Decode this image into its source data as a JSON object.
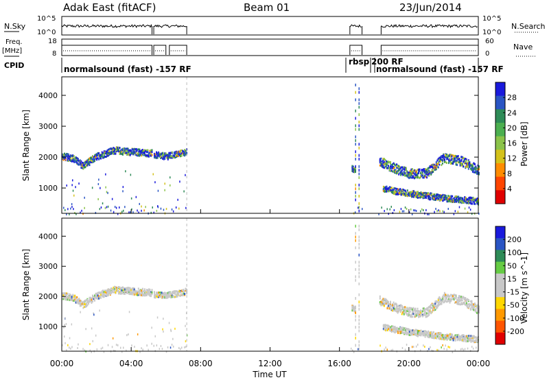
{
  "header": {
    "title": "Adak East (fitACF)",
    "beam": "Beam 01",
    "date": "23/Jun/2014"
  },
  "side_labels": {
    "nsky": "N.Sky",
    "freq": "Freq.",
    "mhz": "[MHz]",
    "cpid": "CPID",
    "nsearch": "N.Search",
    "nave": "Nave"
  },
  "noise_panel": {
    "left_ticks": [
      "10^5",
      "10^0"
    ],
    "right_ticks": [
      "10^5",
      "10^0"
    ]
  },
  "freq_panel": {
    "left_ticks": [
      "18",
      "8"
    ],
    "right_ticks": [
      "60",
      "0"
    ]
  },
  "cpid_labels": {
    "seg1": "normalsound (fast) -157 RF",
    "seg2": "rbsp",
    "seg3": "200 RF",
    "seg4": "normalsound (fast) -157 RF"
  },
  "x_axis": {
    "title": "Time UT",
    "tick_labels": [
      "00:00",
      "04:00",
      "08:00",
      "12:00",
      "16:00",
      "20:00",
      "00:00"
    ]
  },
  "colors": {
    "power_scale": [
      "#1a1adc",
      "#2a55c4",
      "#2e8b57",
      "#4caf50",
      "#8bc34a",
      "#d4c21a",
      "#ff8c00",
      "#ff4500",
      "#e00000"
    ],
    "velocity_scale": [
      "#1a1adc",
      "#2a55c4",
      "#2e8b57",
      "#66cc44",
      "#c8c8c8",
      "#c8c8c8",
      "#ffd700",
      "#ff9900",
      "#ff5500",
      "#e00000"
    ]
  },
  "chart_data": [
    {
      "type": "heatmap",
      "name": "power",
      "ylabel": "Slant Range [km]",
      "yticks": [
        1000,
        2000,
        3000,
        4000
      ],
      "ylim": [
        180,
        4600
      ],
      "xlim_hours": [
        0,
        24
      ],
      "colorbar": {
        "label": "Power [dB]",
        "tick_labels": [
          "28",
          "24",
          "20",
          "16",
          "12",
          "8",
          "4"
        ]
      },
      "bands": [
        {
          "t": [
            0.0,
            0.6,
            1.2,
            2.0,
            3.0,
            4.0,
            5.2
          ],
          "r": [
            2050,
            2000,
            1750,
            2050,
            2250,
            2200,
            2150
          ],
          "width": 220
        },
        {
          "t": [
            5.3,
            6.0,
            7.2
          ],
          "r": [
            2100,
            2050,
            2200
          ],
          "width": 200
        },
        {
          "t": [
            16.7,
            16.9
          ],
          "r": [
            1650,
            1600
          ],
          "width": 200
        },
        {
          "t": [
            18.3,
            19.0,
            20.0,
            21.0,
            22.0,
            23.0,
            24.0
          ],
          "r": [
            1900,
            1700,
            1500,
            1500,
            2000,
            1900,
            1600
          ],
          "width": 300
        },
        {
          "t": [
            18.5,
            20.0,
            22.0,
            24.0
          ],
          "r": [
            1000,
            850,
            700,
            600
          ],
          "width": 200
        }
      ]
    },
    {
      "type": "heatmap",
      "name": "velocity",
      "ylabel": "Slant Range [km]",
      "yticks": [
        1000,
        2000,
        3000,
        4000
      ],
      "ylim": [
        180,
        4600
      ],
      "xlim_hours": [
        0,
        24
      ],
      "colorbar": {
        "label": "Velocity [m s^-1]",
        "tick_labels": [
          "200",
          "100",
          "50",
          "15",
          "-15",
          "-50",
          "-100",
          "-200"
        ]
      },
      "bands": [
        {
          "t": [
            0.0,
            0.6,
            1.2,
            2.0,
            3.0,
            4.0,
            5.2
          ],
          "r": [
            2050,
            2000,
            1750,
            2050,
            2250,
            2200,
            2150
          ],
          "width": 220
        },
        {
          "t": [
            5.3,
            6.0,
            7.2
          ],
          "r": [
            2100,
            2050,
            2200
          ],
          "width": 200
        },
        {
          "t": [
            16.7,
            16.9
          ],
          "r": [
            1650,
            1600
          ],
          "width": 200
        },
        {
          "t": [
            18.3,
            19.0,
            20.0,
            21.0,
            22.0,
            23.0,
            24.0
          ],
          "r": [
            1900,
            1700,
            1500,
            1500,
            2000,
            1900,
            1600
          ],
          "width": 300
        },
        {
          "t": [
            18.5,
            20.0,
            22.0,
            24.0
          ],
          "r": [
            1000,
            850,
            700,
            600
          ],
          "width": 200
        }
      ]
    }
  ]
}
